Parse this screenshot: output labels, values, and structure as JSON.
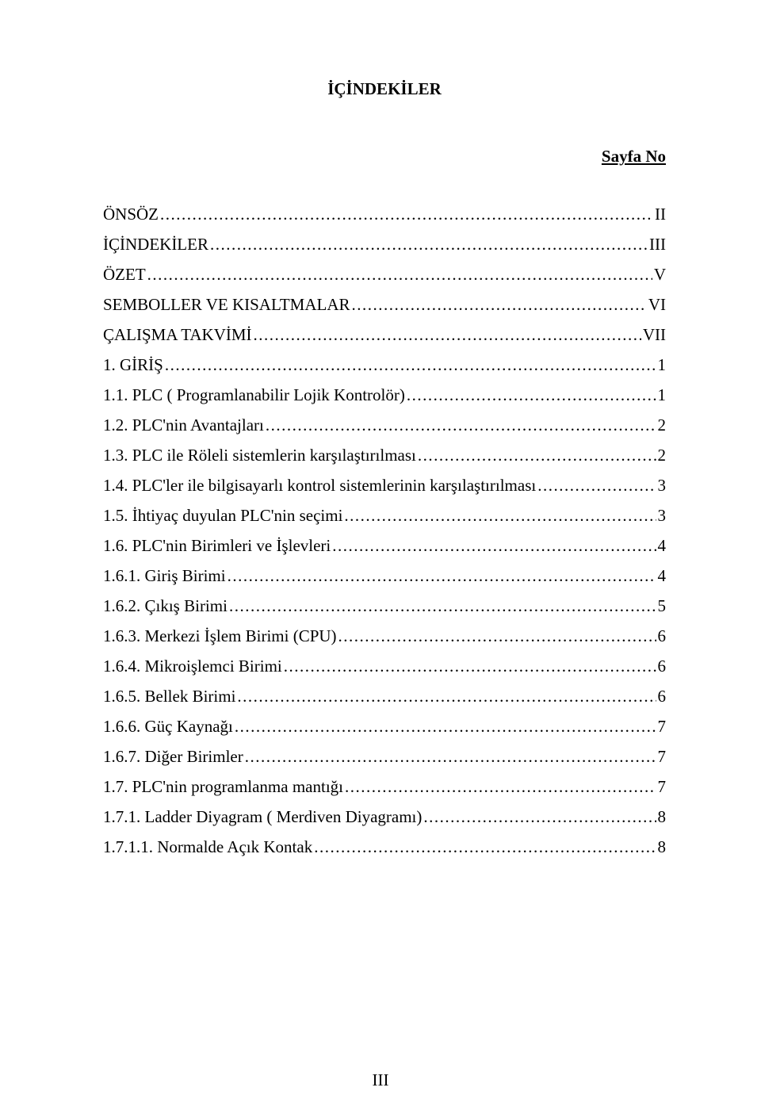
{
  "title": "İÇİNDEKİLER",
  "sayfa_no": "Sayfa No",
  "footer_page": "III",
  "toc": [
    {
      "label": "ÖNSÖZ",
      "page": "II"
    },
    {
      "label": "İÇİNDEKİLER",
      "page": "III"
    },
    {
      "label": "ÖZET",
      "page": "V"
    },
    {
      "label": "SEMBOLLER VE KISALTMALAR",
      "page": " VI"
    },
    {
      "label": "ÇALIŞMA TAKVİMİ",
      "page": " VII"
    },
    {
      "label": "1. GİRİŞ",
      "page": "1"
    },
    {
      "label": "1.1. PLC ( Programlanabilir Lojik Kontrolör)",
      "page": "1"
    },
    {
      "label": "1.2. PLC'nin  Avantajları",
      "page": "2"
    },
    {
      "label": "1.3. PLC ile Röleli sistemlerin karşılaştırılması",
      "page": "2"
    },
    {
      "label": "1.4. PLC'ler ile bilgisayarlı kontrol sistemlerinin karşılaştırılması",
      "page": "3"
    },
    {
      "label": "1.5. İhtiyaç duyulan PLC'nin seçimi",
      "page": "3"
    },
    {
      "label": "1.6. PLC'nin Birimleri ve İşlevleri",
      "page": "4"
    },
    {
      "label": "1.6.1. Giriş Birimi",
      "page": "4"
    },
    {
      "label": "1.6.2. Çıkış Birimi",
      "page": "5"
    },
    {
      "label": "1.6.3. Merkezi İşlem Birimi (CPU)",
      "page": "6"
    },
    {
      "label": "1.6.4. Mikroişlemci Birimi",
      "page": "6"
    },
    {
      "label": "1.6.5. Bellek Birimi",
      "page": "6"
    },
    {
      "label": "1.6.6. Güç Kaynağı",
      "page": "7"
    },
    {
      "label": "1.6.7. Diğer Birimler",
      "page": "7"
    },
    {
      "label": "1.7. PLC'nin programlanma mantığı",
      "page": "7"
    },
    {
      "label": "1.7.1. Ladder Diyagram ( Merdiven Diyagramı)",
      "page": "8"
    },
    {
      "label": "1.7.1.1. Normalde Açık Kontak",
      "page": "8"
    }
  ]
}
